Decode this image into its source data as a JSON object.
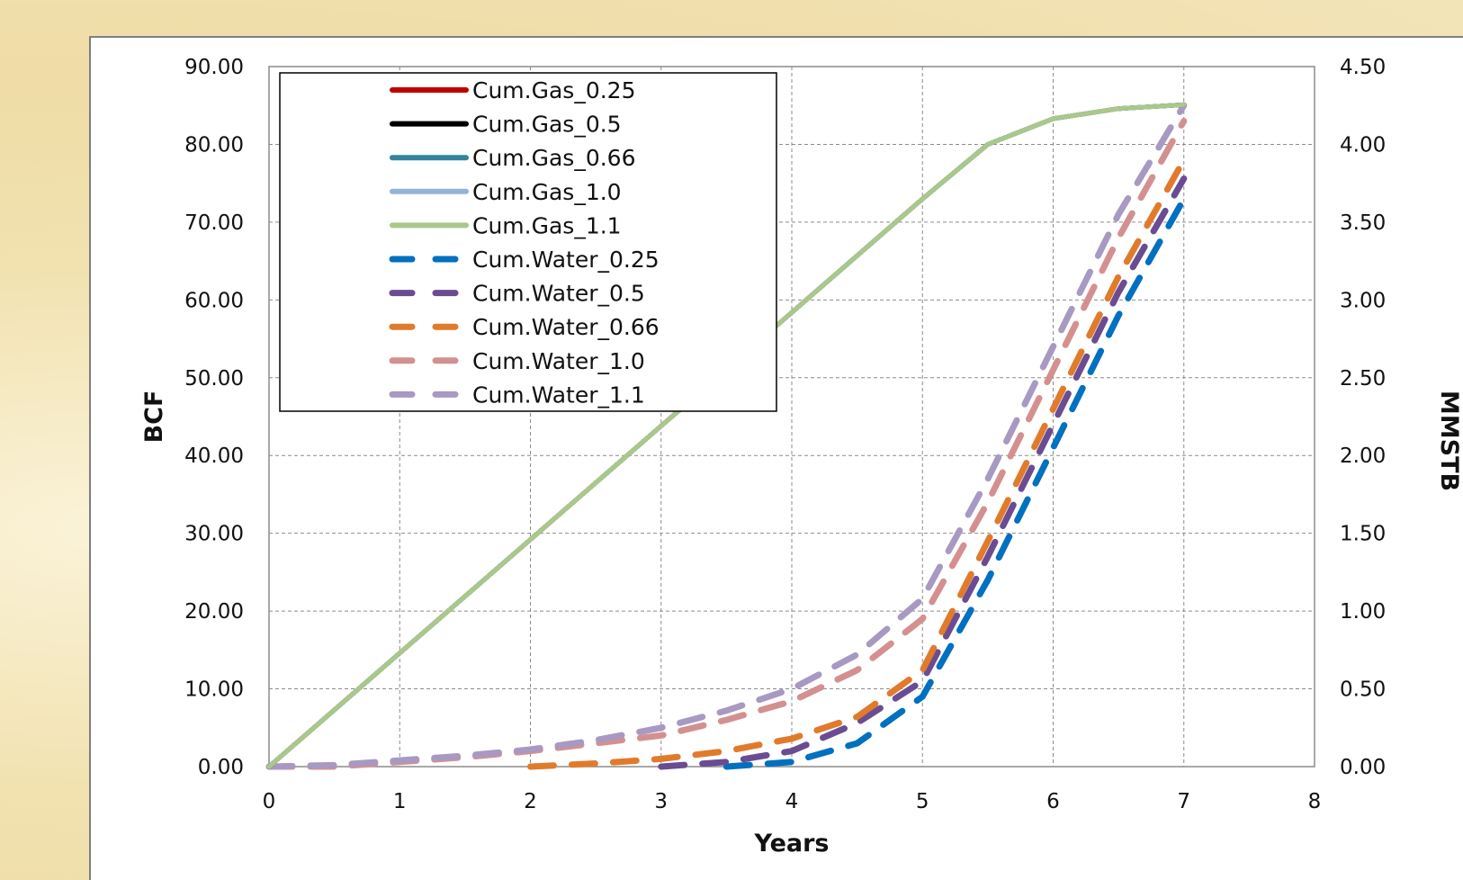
{
  "chart_data": {
    "type": "line",
    "title": "",
    "xlabel": "Years",
    "ylabel": "BCF",
    "y2label": "MMSTB",
    "xlim": [
      0,
      8
    ],
    "ylim": [
      0,
      90
    ],
    "y2lim": [
      0,
      4.5
    ],
    "x_ticks": [
      0,
      1,
      2,
      3,
      4,
      5,
      6,
      7,
      8
    ],
    "x_tick_labels": [
      "0",
      "1",
      "2",
      "3",
      "4",
      "5",
      "6",
      "7",
      "8"
    ],
    "y_ticks": [
      0,
      10,
      20,
      30,
      40,
      50,
      60,
      70,
      80,
      90
    ],
    "y_tick_labels": [
      "0.00",
      "10.00",
      "20.00",
      "30.00",
      "40.00",
      "50.00",
      "60.00",
      "70.00",
      "80.00",
      "90.00"
    ],
    "y2_ticks": [
      0,
      0.5,
      1,
      1.5,
      2,
      2.5,
      3,
      3.5,
      4,
      4.5
    ],
    "y2_tick_labels": [
      "0.00",
      "0.50",
      "1.00",
      "1.50",
      "2.00",
      "2.50",
      "3.00",
      "3.50",
      "4.00",
      "4.50"
    ],
    "grid": true,
    "legend_position": "top-left",
    "series": [
      {
        "name": "Cum.Gas_0.25",
        "axis": "left",
        "style": "solid",
        "color": "#c00000",
        "x": [
          0,
          1,
          2,
          3,
          4,
          5,
          5.5,
          6,
          6.5,
          7
        ],
        "y": [
          0,
          14.6,
          29.2,
          43.8,
          58.4,
          73.0,
          80.0,
          83.3,
          84.6,
          85.1
        ]
      },
      {
        "name": "Cum.Gas_0.5",
        "axis": "left",
        "style": "solid",
        "color": "#000000",
        "x": [
          0,
          1,
          2,
          3,
          4,
          5,
          5.5,
          6,
          6.5,
          7
        ],
        "y": [
          0,
          14.6,
          29.2,
          43.8,
          58.4,
          73.0,
          80.0,
          83.3,
          84.6,
          85.1
        ]
      },
      {
        "name": "Cum.Gas_0.66",
        "axis": "left",
        "style": "solid",
        "color": "#31859c",
        "x": [
          0,
          1,
          2,
          3,
          4,
          5,
          5.5,
          6,
          6.5,
          7
        ],
        "y": [
          0,
          14.6,
          29.2,
          43.8,
          58.4,
          73.0,
          80.0,
          83.3,
          84.6,
          85.1
        ]
      },
      {
        "name": "Cum.Gas_1.0",
        "axis": "left",
        "style": "solid",
        "color": "#95b3d7",
        "x": [
          0,
          1,
          2,
          3,
          4,
          5,
          5.5,
          6,
          6.5,
          7
        ],
        "y": [
          0,
          14.6,
          29.2,
          43.8,
          58.4,
          73.0,
          80.0,
          83.3,
          84.6,
          85.1
        ]
      },
      {
        "name": "Cum.Gas_1.1",
        "axis": "left",
        "style": "solid",
        "color": "#a9c88a",
        "x": [
          0,
          1,
          2,
          3,
          4,
          5,
          5.5,
          6,
          6.5,
          7
        ],
        "y": [
          0,
          14.6,
          29.2,
          43.8,
          58.4,
          73.0,
          80.0,
          83.3,
          84.6,
          85.1
        ]
      },
      {
        "name": "Cum.Water_0.25",
        "axis": "right",
        "style": "dashed",
        "color": "#0070c0",
        "x": [
          3.5,
          4,
          4.5,
          5,
          5.5,
          6,
          6.5,
          7
        ],
        "y": [
          0.0,
          0.03,
          0.15,
          0.45,
          1.2,
          2.05,
          2.9,
          3.65
        ]
      },
      {
        "name": "Cum.Water_0.5",
        "axis": "right",
        "style": "dashed",
        "color": "#6a4c93",
        "x": [
          3,
          3.5,
          4,
          4.5,
          5,
          5.5,
          6,
          6.5,
          7
        ],
        "y": [
          0.0,
          0.03,
          0.1,
          0.28,
          0.55,
          1.35,
          2.2,
          3.05,
          3.78
        ]
      },
      {
        "name": "Cum.Water_0.66",
        "axis": "right",
        "style": "dashed",
        "color": "#e07b2c",
        "x": [
          2,
          2.5,
          3,
          3.5,
          4,
          4.5,
          5,
          5.5,
          6,
          6.5,
          7
        ],
        "y": [
          0.0,
          0.02,
          0.05,
          0.1,
          0.18,
          0.32,
          0.62,
          1.45,
          2.3,
          3.15,
          3.9
        ]
      },
      {
        "name": "Cum.Water_1.0",
        "axis": "right",
        "style": "dashed",
        "color": "#d49090",
        "x": [
          0,
          0.5,
          1,
          1.5,
          2,
          2.5,
          3,
          3.5,
          4,
          4.5,
          5,
          5.5,
          6,
          6.5,
          7
        ],
        "y": [
          0.0,
          0.0,
          0.03,
          0.06,
          0.1,
          0.15,
          0.2,
          0.3,
          0.42,
          0.62,
          0.95,
          1.7,
          2.55,
          3.4,
          4.15
        ]
      },
      {
        "name": "Cum.Water_1.1",
        "axis": "right",
        "style": "dashed",
        "color": "#a899c2",
        "x": [
          0,
          0.5,
          1,
          1.5,
          2,
          2.5,
          3,
          3.5,
          4,
          4.5,
          5,
          5.5,
          6,
          6.5,
          7
        ],
        "y": [
          0.0,
          0.01,
          0.04,
          0.07,
          0.11,
          0.17,
          0.25,
          0.36,
          0.5,
          0.72,
          1.08,
          1.85,
          2.7,
          3.55,
          4.25
        ]
      }
    ]
  }
}
